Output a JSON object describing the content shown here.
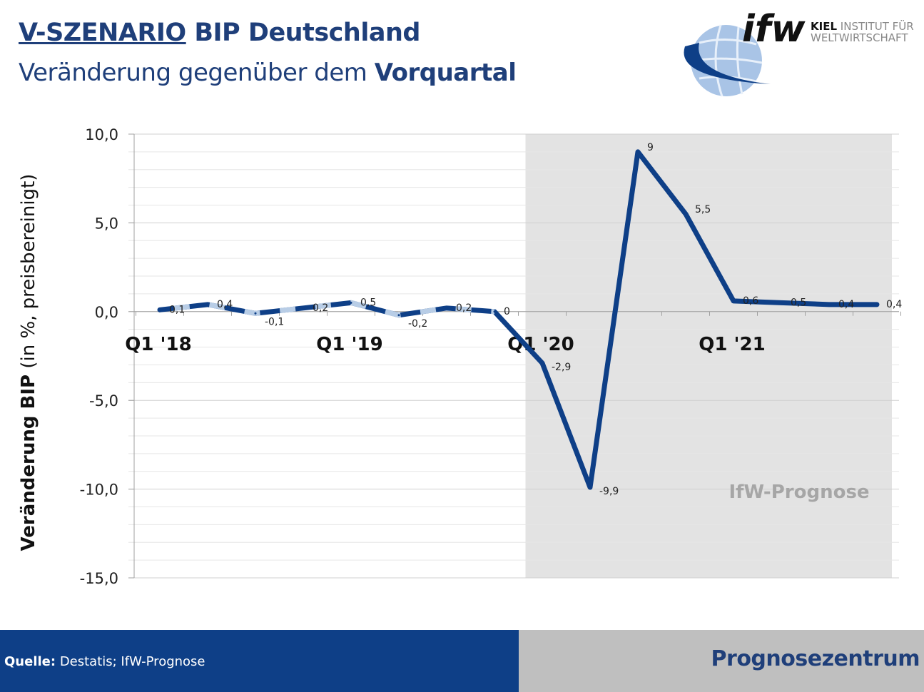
{
  "header": {
    "title_part1": "V-SZENARIO",
    "title_part2": "BIP Deutschland",
    "subtitle_part1": "Veränderung gegenüber dem",
    "subtitle_part2": "Vorquartal"
  },
  "logo": {
    "mark": "ifw",
    "line1_bold": "KIEL",
    "line1": "INSTITUT FÜR",
    "line2": "WELTWIRTSCHAFT"
  },
  "footer": {
    "source_label": "Quelle:",
    "source_text": "Destatis; IfW-Prognose",
    "center": "Prognosezentrum"
  },
  "colors": {
    "line": "#0e3f87",
    "line_light": "#b8cde6",
    "forecast_band": "#e3e3e3",
    "footer_blue": "#0e3f87",
    "footer_gray": "#bfbfbf",
    "title": "#1f3f7a"
  },
  "chart_data": {
    "type": "line",
    "ylabel_bold": "Veränderung BIP",
    "ylabel_rest": "(in %, preisbereinigt)",
    "ylim": [
      -15,
      10
    ],
    "yticks": [
      10,
      5,
      0,
      -5,
      -10,
      -15
    ],
    "ytick_labels": [
      "10,0",
      "5,0",
      "0,0",
      "-5,0",
      "-10,0",
      "-15,0"
    ],
    "grid": true,
    "x": [
      "Q1 '18",
      "Q2 '18",
      "Q3 '18",
      "Q4 '18",
      "Q1 '19",
      "Q2 '19",
      "Q3 '19",
      "Q4 '19",
      "Q1 '20",
      "Q2 '20",
      "Q3 '20",
      "Q4 '20",
      "Q1 '21",
      "Q2 '21",
      "Q3 '21",
      "Q4 '21"
    ],
    "xtick_labels": [
      {
        "index": 0,
        "label": "Q1 '18"
      },
      {
        "index": 4,
        "label": "Q1 '19"
      },
      {
        "index": 8,
        "label": "Q1 '20"
      },
      {
        "index": 12,
        "label": "Q1 '21"
      }
    ],
    "values": [
      0.1,
      0.4,
      -0.1,
      0.2,
      0.5,
      -0.2,
      0.2,
      0,
      -2.9,
      -9.9,
      9,
      5.5,
      0.6,
      0.5,
      0.4,
      0.4
    ],
    "data_labels": [
      "0,1",
      "0,4",
      "-0,1",
      "0,2",
      "0,5",
      "-0,2",
      "0,2",
      "0",
      "-2,9",
      "-9,9",
      "9",
      "5,5",
      "0,6",
      "0,5",
      "0,4",
      "0,4"
    ],
    "forecast_start_index": 8,
    "annotation": "IfW-Prognose"
  }
}
